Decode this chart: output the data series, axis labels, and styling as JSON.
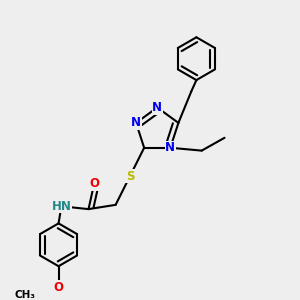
{
  "background_color": "#eeeeee",
  "atom_colors": {
    "C": "#000000",
    "N": "#0000ee",
    "O": "#ee0000",
    "S": "#bbbb00",
    "H": "#228888"
  },
  "bond_color": "#000000",
  "bond_width": 1.5,
  "font_size_atoms": 8.5,
  "fig_w": 3.0,
  "fig_h": 3.0,
  "dpi": 100
}
